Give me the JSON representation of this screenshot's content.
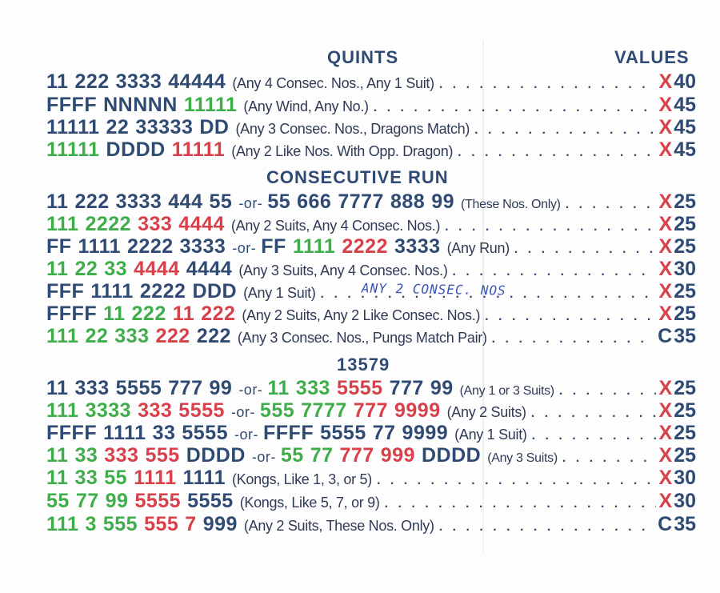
{
  "headers": {
    "values": "VALUES"
  },
  "sections": [
    {
      "title": "QUINTS",
      "rows": [
        {
          "tiles": [
            [
              "11",
              "b"
            ],
            [
              "222",
              "b"
            ],
            [
              "3333",
              "b"
            ],
            [
              "44444",
              "b"
            ]
          ],
          "note": "(Any 4 Consec. Nos., Any 1 Suit)",
          "mark": "X",
          "points": "40"
        },
        {
          "tiles": [
            [
              "FFFF",
              "b"
            ],
            [
              "NNNNN",
              "b"
            ],
            [
              "11111",
              "g"
            ]
          ],
          "note": "(Any Wind, Any No.)",
          "mark": "X",
          "points": "45"
        },
        {
          "tiles": [
            [
              "11111",
              "b"
            ],
            [
              "22",
              "b"
            ],
            [
              "33333",
              "b"
            ],
            [
              "DD",
              "b"
            ]
          ],
          "note": "(Any 3 Consec. Nos., Dragons Match)",
          "mark": "X",
          "points": "45"
        },
        {
          "tiles": [
            [
              "11111",
              "g"
            ],
            [
              "DDDD",
              "b"
            ],
            [
              "11111",
              "r"
            ]
          ],
          "note": "(Any 2 Like Nos. With Opp. Dragon)",
          "mark": "X",
          "points": "45"
        }
      ]
    },
    {
      "title": "CONSECUTIVE RUN",
      "rows": [
        {
          "tiles": [
            [
              "11",
              "b"
            ],
            [
              "222",
              "b"
            ],
            [
              "3333",
              "b"
            ],
            [
              "444",
              "b"
            ],
            [
              "55",
              "b"
            ],
            [
              "-or-",
              "or"
            ],
            [
              "55",
              "b"
            ],
            [
              "666",
              "b"
            ],
            [
              "7777",
              "b"
            ],
            [
              "888",
              "b"
            ],
            [
              "99",
              "b"
            ]
          ],
          "note": "(These Nos. Only)",
          "small": true,
          "mark": "X",
          "points": "25"
        },
        {
          "tiles": [
            [
              "111",
              "g"
            ],
            [
              "2222",
              "g"
            ],
            [
              "333",
              "r"
            ],
            [
              "4444",
              "r"
            ]
          ],
          "note": "(Any 2 Suits, Any 4 Consec. Nos.)",
          "mark": "X",
          "points": "25"
        },
        {
          "tiles": [
            [
              "FF",
              "b"
            ],
            [
              "1111",
              "b"
            ],
            [
              "2222",
              "b"
            ],
            [
              "3333",
              "b"
            ],
            [
              "-or-",
              "or"
            ],
            [
              "FF",
              "b"
            ],
            [
              "1111",
              "g"
            ],
            [
              "2222",
              "r"
            ],
            [
              "3333",
              "b"
            ]
          ],
          "note": "(Any Run)",
          "mark": "X",
          "points": "25"
        },
        {
          "tiles": [
            [
              "11",
              "g"
            ],
            [
              "22",
              "g"
            ],
            [
              "33",
              "g"
            ],
            [
              "4444",
              "r"
            ],
            [
              "4444",
              "b"
            ]
          ],
          "note": "(Any 3 Suits, Any 4 Consec. Nos.)",
          "mark": "X",
          "points": "30"
        },
        {
          "tiles": [
            [
              "FFF",
              "b"
            ],
            [
              "1111",
              "b"
            ],
            [
              "2222",
              "b"
            ],
            [
              "DDD",
              "b"
            ]
          ],
          "note": "(Any 1 Suit)",
          "mark": "X",
          "points": "25"
        },
        {
          "tiles": [
            [
              "FFFF",
              "b"
            ],
            [
              "11",
              "g"
            ],
            [
              "222",
              "g"
            ],
            [
              "11",
              "r"
            ],
            [
              "222",
              "r"
            ]
          ],
          "note": "(Any 2 Suits, Any 2 Like Consec. Nos.)",
          "mark": "X",
          "points": "25"
        },
        {
          "tiles": [
            [
              "111",
              "g"
            ],
            [
              "22",
              "g"
            ],
            [
              "333",
              "g"
            ],
            [
              "222",
              "r"
            ],
            [
              "222",
              "b"
            ]
          ],
          "note": "(Any 3 Consec. Nos., Pungs Match Pair)",
          "mark": "C",
          "points": "35"
        }
      ]
    },
    {
      "title": "13579",
      "rows": [
        {
          "tiles": [
            [
              "11",
              "b"
            ],
            [
              "333",
              "b"
            ],
            [
              "5555",
              "b"
            ],
            [
              "777",
              "b"
            ],
            [
              "99",
              "b"
            ],
            [
              "-or-",
              "or"
            ],
            [
              "11",
              "g"
            ],
            [
              "333",
              "g"
            ],
            [
              "5555",
              "r"
            ],
            [
              "777",
              "b"
            ],
            [
              "99",
              "b"
            ]
          ],
          "note": "(Any 1 or 3 Suits)",
          "small": true,
          "mark": "X",
          "points": "25"
        },
        {
          "tiles": [
            [
              "111",
              "g"
            ],
            [
              "3333",
              "g"
            ],
            [
              "333",
              "r"
            ],
            [
              "5555",
              "r"
            ],
            [
              "-or-",
              "or"
            ],
            [
              "555",
              "g"
            ],
            [
              "7777",
              "g"
            ],
            [
              "777",
              "r"
            ],
            [
              "9999",
              "r"
            ]
          ],
          "note": "(Any 2 Suits)",
          "mark": "X",
          "points": "25"
        },
        {
          "tiles": [
            [
              "FFFF",
              "b"
            ],
            [
              "1111",
              "b"
            ],
            [
              "33",
              "b"
            ],
            [
              "5555",
              "b"
            ],
            [
              "-or-",
              "or"
            ],
            [
              "FFFF",
              "b"
            ],
            [
              "5555",
              "b"
            ],
            [
              "77",
              "b"
            ],
            [
              "9999",
              "b"
            ]
          ],
          "note": "(Any 1 Suit)",
          "mark": "X",
          "points": "25"
        },
        {
          "tiles": [
            [
              "11",
              "g"
            ],
            [
              "33",
              "g"
            ],
            [
              "333",
              "r"
            ],
            [
              "555",
              "r"
            ],
            [
              "DDDD",
              "b"
            ],
            [
              "-or-",
              "or"
            ],
            [
              "55",
              "g"
            ],
            [
              "77",
              "g"
            ],
            [
              "777",
              "r"
            ],
            [
              "999",
              "r"
            ],
            [
              "DDDD",
              "b"
            ]
          ],
          "note": "(Any 3 Suits)",
          "small": true,
          "mark": "X",
          "points": "25"
        },
        {
          "tiles": [
            [
              "11",
              "g"
            ],
            [
              "33",
              "g"
            ],
            [
              "55",
              "g"
            ],
            [
              "1111",
              "r"
            ],
            [
              "1111",
              "b"
            ]
          ],
          "note": "(Kongs, Like 1, 3, or 5)",
          "mark": "X",
          "points": "30"
        },
        {
          "tiles": [
            [
              "55",
              "g"
            ],
            [
              "77",
              "g"
            ],
            [
              "99",
              "g"
            ],
            [
              "5555",
              "r"
            ],
            [
              "5555",
              "b"
            ]
          ],
          "note": "(Kongs, Like 5, 7, or 9)",
          "mark": "X",
          "points": "30"
        },
        {
          "tiles": [
            [
              "111",
              "g"
            ],
            [
              "3",
              "g"
            ],
            [
              "555",
              "g"
            ],
            [
              "555",
              "r"
            ],
            [
              "7",
              "r"
            ],
            [
              "999",
              "b"
            ]
          ],
          "note": "(Any 2 Suits, These Nos. Only)",
          "mark": "C",
          "points": "35"
        }
      ]
    }
  ],
  "handwritten_note": "ANY 2 CONSEC. NOS"
}
